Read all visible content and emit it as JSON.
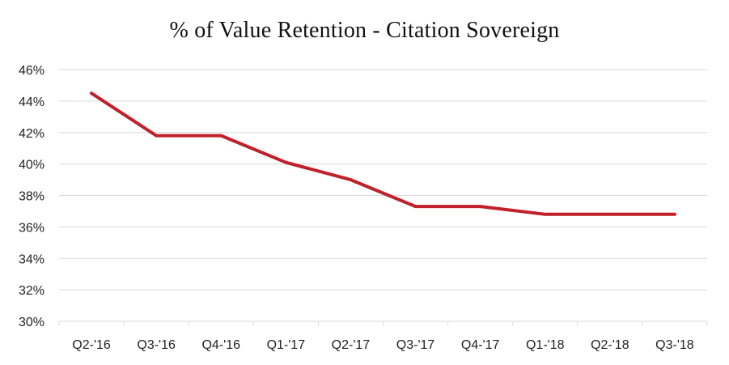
{
  "chart_data": {
    "type": "line",
    "title": "% of Value Retention - Citation Sovereign",
    "xlabel": "",
    "ylabel": "",
    "categories": [
      "Q2-'16",
      "Q3-'16",
      "Q4-'16",
      "Q1-'17",
      "Q2-'17",
      "Q3-'17",
      "Q4-'17",
      "Q1-'18",
      "Q2-'18",
      "Q3-'18"
    ],
    "series": [
      {
        "values": [
          44.5,
          41.8,
          41.8,
          40.1,
          39.0,
          37.3,
          37.3,
          36.8,
          36.8,
          36.8
        ],
        "color": "#c0202a"
      }
    ],
    "ylim": [
      30,
      46
    ],
    "ytick_step": 2,
    "ytick_format": "percent",
    "grid": true,
    "gridline_color": "#d9d9d9",
    "legend": "none"
  }
}
